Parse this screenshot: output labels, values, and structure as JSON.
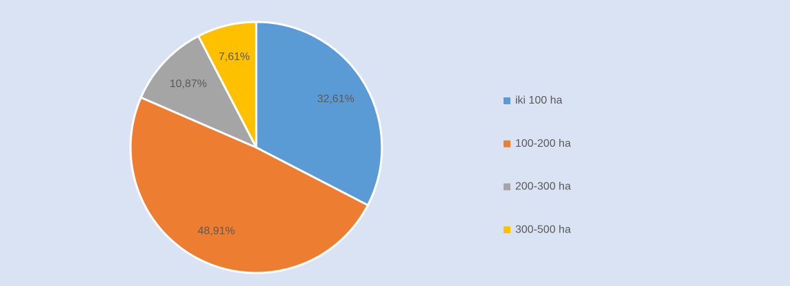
{
  "chart_data": {
    "type": "pie",
    "categories": [
      "iki 100 ha",
      "100-200 ha",
      "200-300 ha",
      "300-500 ha"
    ],
    "values": [
      32.61,
      48.91,
      10.87,
      7.61
    ],
    "value_labels": [
      "32,61%",
      "48,91%",
      "10,87%",
      "7,61%"
    ],
    "colors": [
      "#5b9bd5",
      "#ed7d31",
      "#a5a5a5",
      "#ffc000"
    ],
    "legend": "right"
  }
}
